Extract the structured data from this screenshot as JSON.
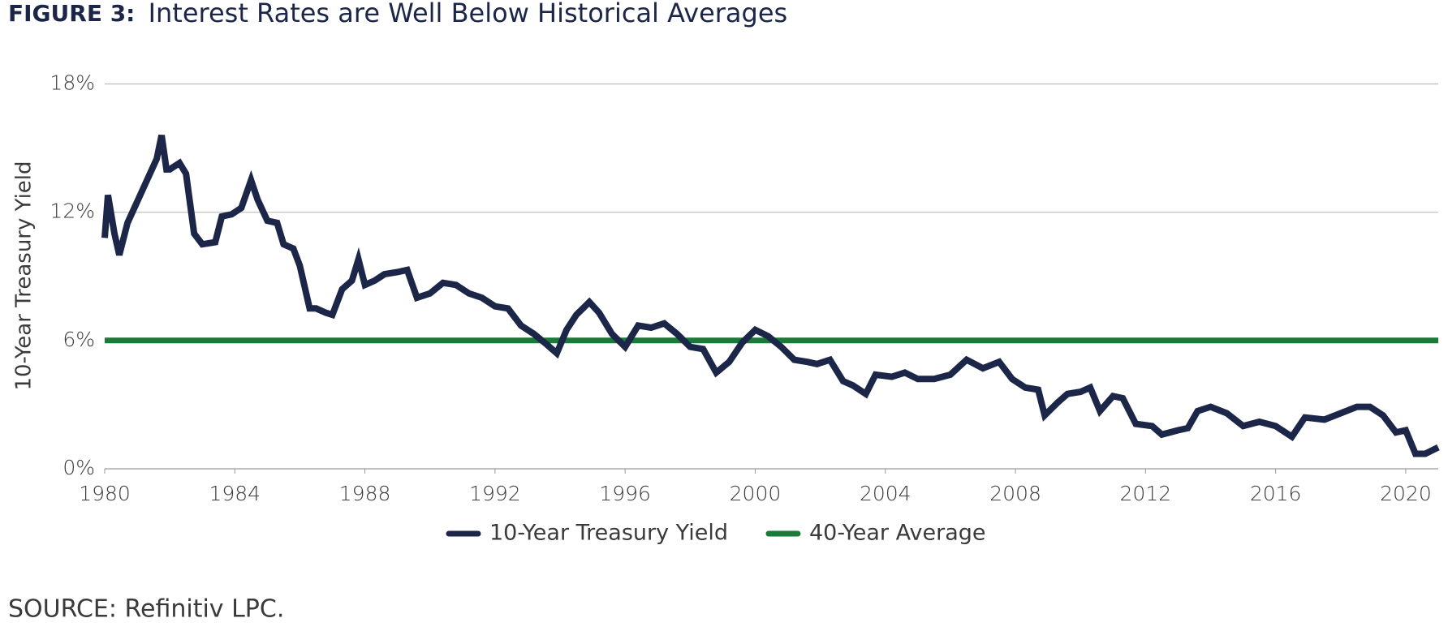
{
  "figure_label": "FIGURE 3:",
  "source": "SOURCE: Refinitiv LPC.",
  "chart_data": {
    "type": "line",
    "title": "Interest Rates are Well Below Historical Averages",
    "ylabel": "10-Year Treasury Yield",
    "xlim": [
      1980,
      2021
    ],
    "xticks": [
      1980,
      1984,
      1988,
      1992,
      1996,
      2000,
      2004,
      2008,
      2012,
      2016,
      2020
    ],
    "ylim": [
      0,
      18
    ],
    "yticks": [
      {
        "value": 0,
        "label": "0%"
      },
      {
        "value": 6,
        "label": "6%"
      },
      {
        "value": 12,
        "label": "12%"
      },
      {
        "value": 18,
        "label": "18%"
      }
    ],
    "grid": true,
    "legend": "bottom",
    "series": [
      {
        "name": "10-Year Treasury Yield",
        "color": "#1c2648",
        "x": [
          1980.0,
          1980.1,
          1980.3,
          1980.45,
          1980.7,
          1981.0,
          1981.3,
          1981.6,
          1981.75,
          1981.9,
          1982.0,
          1982.3,
          1982.5,
          1982.75,
          1983.0,
          1983.4,
          1983.6,
          1983.9,
          1984.2,
          1984.5,
          1984.7,
          1985.0,
          1985.3,
          1985.5,
          1985.8,
          1986.0,
          1986.3,
          1986.5,
          1986.8,
          1987.0,
          1987.3,
          1987.6,
          1987.8,
          1988.0,
          1988.3,
          1988.6,
          1989.0,
          1989.3,
          1989.6,
          1990.0,
          1990.4,
          1990.8,
          1991.2,
          1991.6,
          1992.0,
          1992.4,
          1992.8,
          1993.2,
          1993.6,
          1993.9,
          1994.2,
          1994.5,
          1994.9,
          1995.2,
          1995.6,
          1996.0,
          1996.4,
          1996.8,
          1997.2,
          1997.6,
          1998.0,
          1998.4,
          1998.8,
          1999.2,
          1999.6,
          2000.0,
          2000.4,
          2000.8,
          2001.2,
          2001.6,
          2001.9,
          2002.3,
          2002.7,
          2003.0,
          2003.4,
          2003.7,
          2004.2,
          2004.6,
          2005.0,
          2005.5,
          2006.0,
          2006.5,
          2007.0,
          2007.5,
          2007.9,
          2008.3,
          2008.7,
          2008.9,
          2009.3,
          2009.6,
          2010.0,
          2010.3,
          2010.6,
          2011.0,
          2011.3,
          2011.7,
          2012.2,
          2012.5,
          2013.0,
          2013.3,
          2013.6,
          2014.0,
          2014.5,
          2015.0,
          2015.5,
          2016.0,
          2016.5,
          2016.9,
          2017.5,
          2018.0,
          2018.5,
          2018.9,
          2019.3,
          2019.7,
          2020.0,
          2020.3,
          2020.6,
          2021.0
        ],
        "values": [
          10.8,
          12.8,
          11.0,
          10.0,
          11.5,
          12.5,
          13.5,
          14.5,
          15.6,
          14.0,
          14.0,
          14.3,
          13.8,
          11.0,
          10.5,
          10.6,
          11.8,
          11.9,
          12.2,
          13.5,
          12.6,
          11.6,
          11.5,
          10.5,
          10.3,
          9.5,
          7.5,
          7.5,
          7.3,
          7.2,
          8.4,
          8.8,
          9.8,
          8.6,
          8.8,
          9.1,
          9.2,
          9.3,
          8.0,
          8.2,
          8.7,
          8.6,
          8.2,
          8.0,
          7.6,
          7.5,
          6.7,
          6.3,
          5.8,
          5.4,
          6.5,
          7.2,
          7.8,
          7.3,
          6.3,
          5.7,
          6.7,
          6.6,
          6.8,
          6.3,
          5.7,
          5.6,
          4.5,
          5.0,
          5.9,
          6.5,
          6.2,
          5.7,
          5.1,
          5.0,
          4.9,
          5.1,
          4.1,
          3.9,
          3.5,
          4.4,
          4.3,
          4.5,
          4.2,
          4.2,
          4.4,
          5.1,
          4.7,
          5.0,
          4.2,
          3.8,
          3.7,
          2.5,
          3.1,
          3.5,
          3.6,
          3.8,
          2.7,
          3.4,
          3.3,
          2.1,
          2.0,
          1.6,
          1.8,
          1.9,
          2.7,
          2.9,
          2.6,
          2.0,
          2.2,
          2.0,
          1.5,
          2.4,
          2.3,
          2.6,
          2.9,
          2.9,
          2.5,
          1.7,
          1.8,
          0.7,
          0.7,
          1.0
        ]
      },
      {
        "name": "40-Year Average",
        "color": "#1a7a37",
        "x": [
          1980,
          2021
        ],
        "values": [
          6,
          6
        ]
      }
    ]
  }
}
